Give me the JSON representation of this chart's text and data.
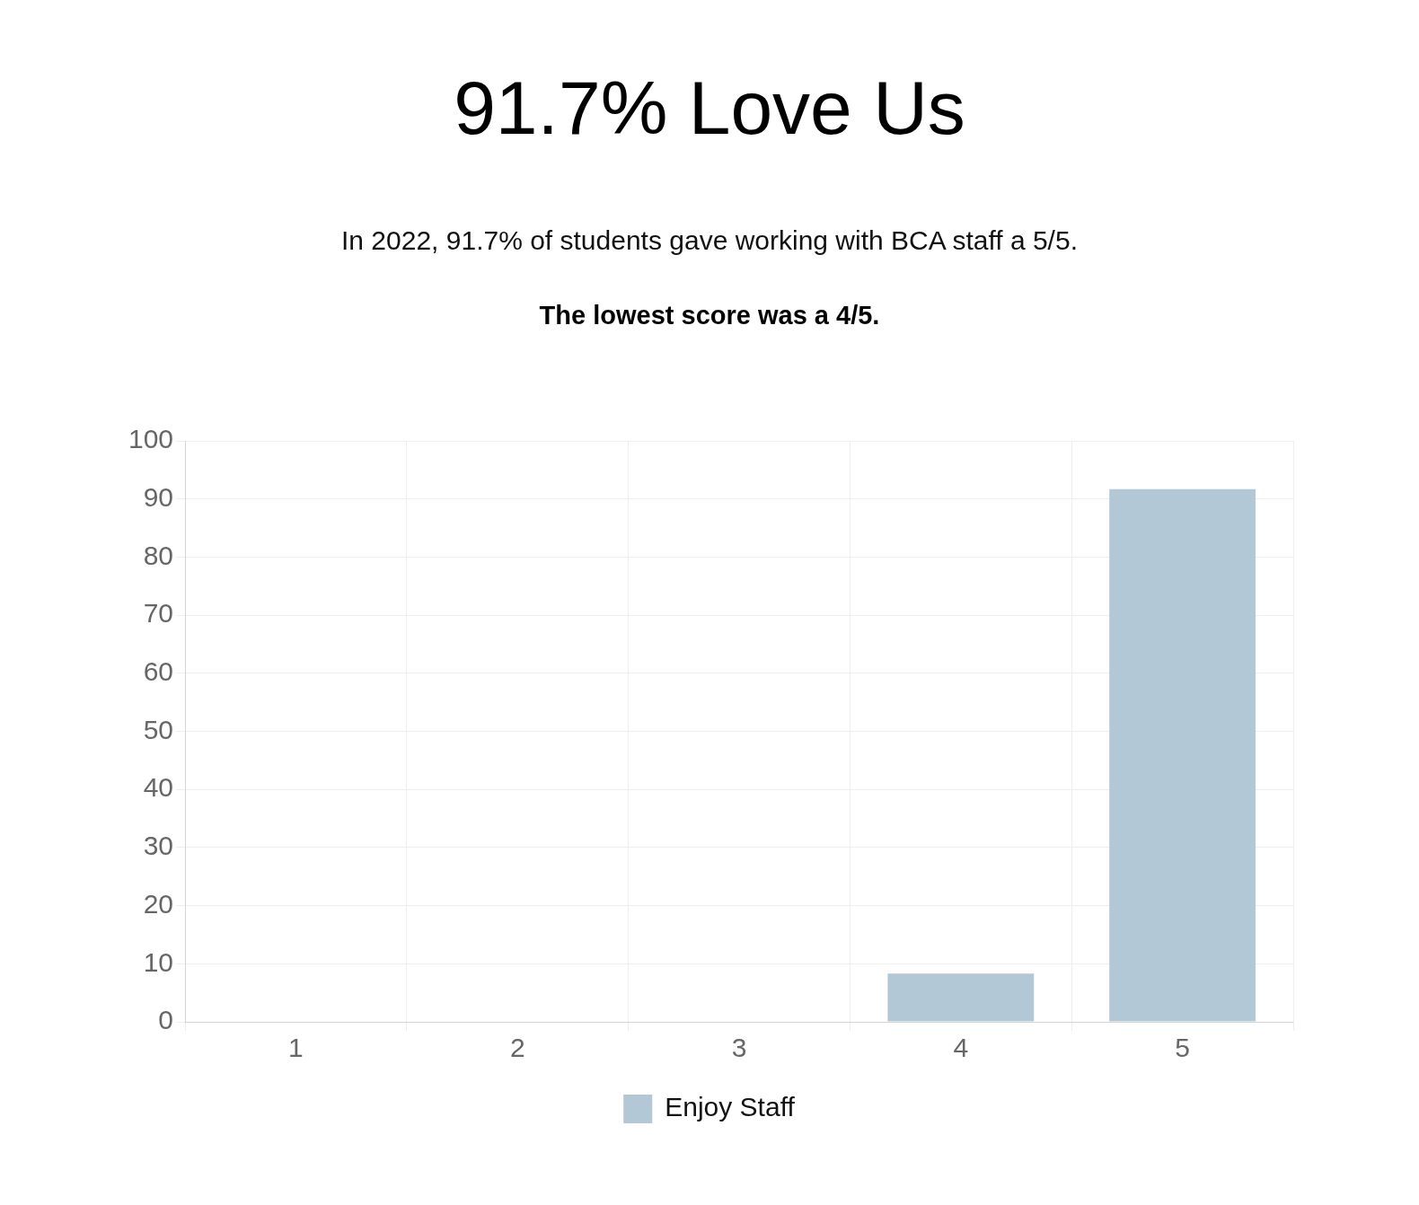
{
  "chart_data": {
    "type": "bar",
    "title": "91.7% Love Us",
    "subtitle": "In 2022, 91.7% of students gave working with BCA staff a 5/5.",
    "annotations": [
      "The lowest score was a 4/5."
    ],
    "categories": [
      "1",
      "2",
      "3",
      "4",
      "5"
    ],
    "series": [
      {
        "name": "Enjoy Staff",
        "color": "#b3c8d6",
        "values": [
          0,
          0,
          0,
          8.3,
          91.7
        ]
      }
    ],
    "ylim": [
      0,
      100
    ],
    "yticks": [
      0,
      10,
      20,
      30,
      40,
      50,
      60,
      70,
      80,
      90,
      100
    ],
    "grid": true,
    "legend": "bottom"
  }
}
